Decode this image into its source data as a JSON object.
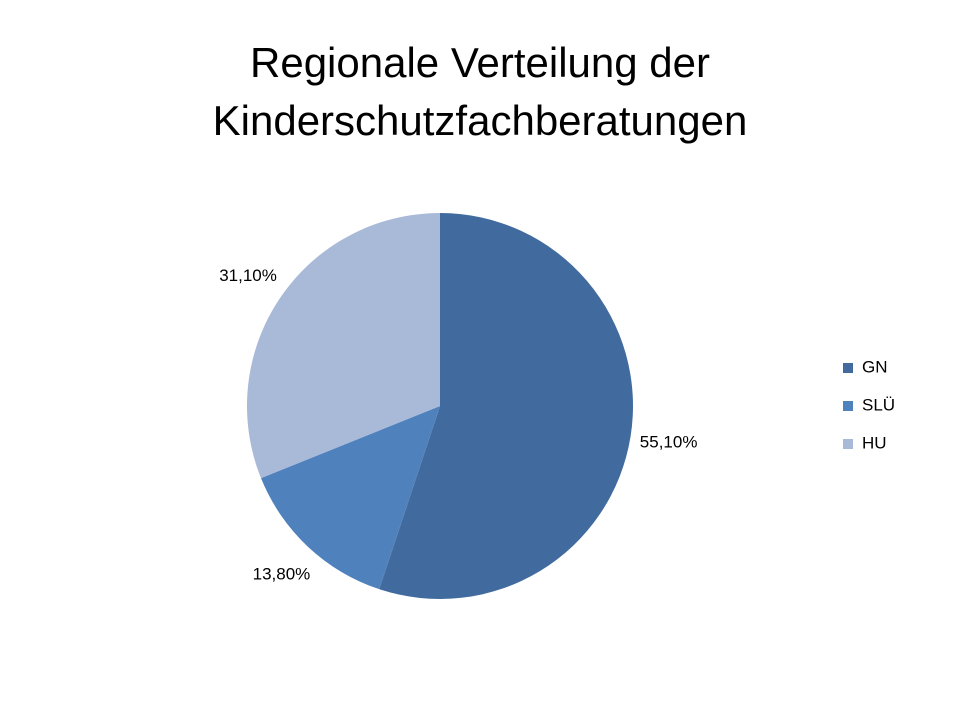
{
  "chart_data": {
    "type": "pie",
    "title": "Regionale Verteilung der Kinderschutzfachberatungen",
    "categories": [
      "GN",
      "SLÜ",
      "HU"
    ],
    "values": [
      55.1,
      13.8,
      31.1
    ],
    "value_labels": [
      "55,10%",
      "13,80%",
      "31,10%"
    ],
    "colors": [
      "#416b9e",
      "#4f81bd",
      "#a9b9d8"
    ],
    "legend": "right"
  }
}
